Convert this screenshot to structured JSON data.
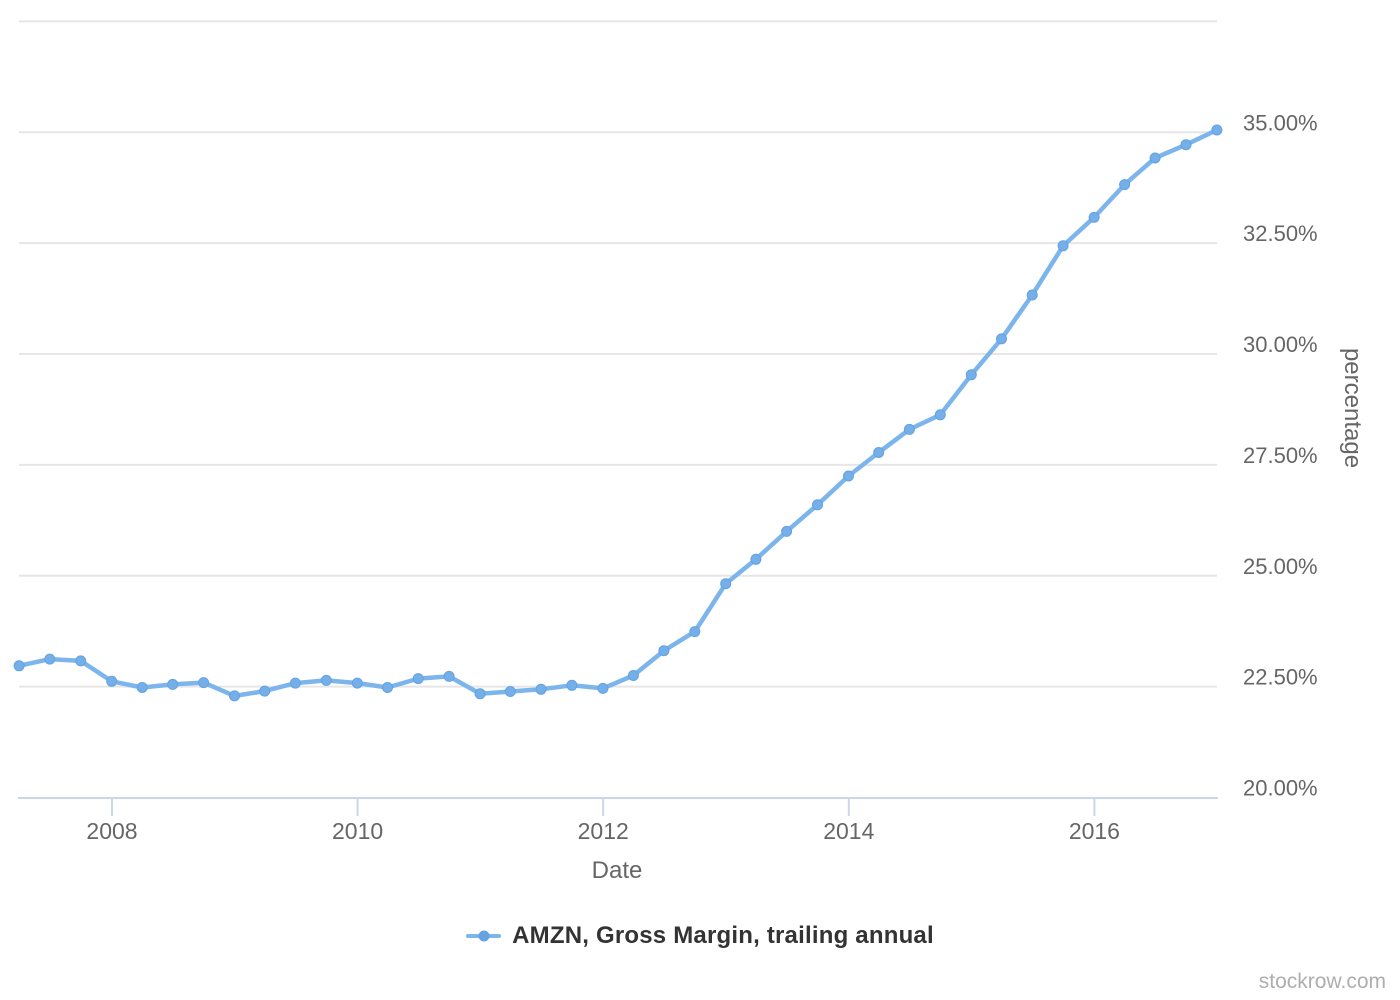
{
  "watermark": "stockrow.com",
  "colors": {
    "background": "#ffffff",
    "series_line": "#7cb5ec",
    "series_marker": "#74afe9",
    "series_marker_stroke": "#64a2e0",
    "gridline": "#e6e6e6",
    "axis_line": "#ccd6eb",
    "axis_label": "#666666",
    "legend_text": "#333333",
    "watermark_text": "#aeaeae"
  },
  "chart_data": {
    "type": "line",
    "title": "",
    "xlabel": "Date",
    "ylabel": "percentage",
    "legend_position": "bottom-center",
    "grid": true,
    "ylim": [
      20,
      37.5
    ],
    "x_tick_years": [
      2008,
      2010,
      2012,
      2014,
      2016
    ],
    "x_tick_labels": [
      "2008",
      "2010",
      "2012",
      "2014",
      "2016"
    ],
    "y_tick_values": [
      35,
      32.5,
      30,
      27.5,
      25,
      22.5,
      20
    ],
    "y_tick_labels": [
      "35.00%",
      "32.50%",
      "30.00%",
      "27.50%",
      "25.00%",
      "22.50%",
      "20.00%"
    ],
    "y_gridline_values": [
      37.5,
      35,
      32.5,
      30,
      27.5,
      25,
      22.5
    ],
    "series": [
      {
        "name": "AMZN, Gross Margin, trailing annual",
        "color": "#7cb5ec",
        "marker_color": "#74afe9",
        "dates": [
          "2007-03-31",
          "2007-06-30",
          "2007-09-30",
          "2007-12-31",
          "2008-03-31",
          "2008-06-30",
          "2008-09-30",
          "2008-12-31",
          "2009-03-31",
          "2009-06-30",
          "2009-09-30",
          "2009-12-31",
          "2010-03-31",
          "2010-06-30",
          "2010-09-30",
          "2010-12-31",
          "2011-03-31",
          "2011-06-30",
          "2011-09-30",
          "2011-12-31",
          "2012-03-31",
          "2012-06-30",
          "2012-09-30",
          "2012-12-31",
          "2013-03-31",
          "2013-06-30",
          "2013-09-30",
          "2013-12-31",
          "2014-03-31",
          "2014-06-30",
          "2014-09-30",
          "2014-12-31",
          "2015-03-31",
          "2015-06-30",
          "2015-09-30",
          "2015-12-31",
          "2016-03-31",
          "2016-06-30",
          "2016-09-30",
          "2016-12-31"
        ],
        "values": [
          22.97,
          23.12,
          23.08,
          22.62,
          22.48,
          22.55,
          22.59,
          22.29,
          22.4,
          22.58,
          22.64,
          22.58,
          22.48,
          22.68,
          22.73,
          22.34,
          22.39,
          22.44,
          22.53,
          22.46,
          22.75,
          23.31,
          23.74,
          24.82,
          25.37,
          26.0,
          26.6,
          27.25,
          27.78,
          28.3,
          28.63,
          29.53,
          30.34,
          31.33,
          32.44,
          33.08,
          33.82,
          34.42,
          34.72,
          35.05
        ]
      }
    ]
  }
}
